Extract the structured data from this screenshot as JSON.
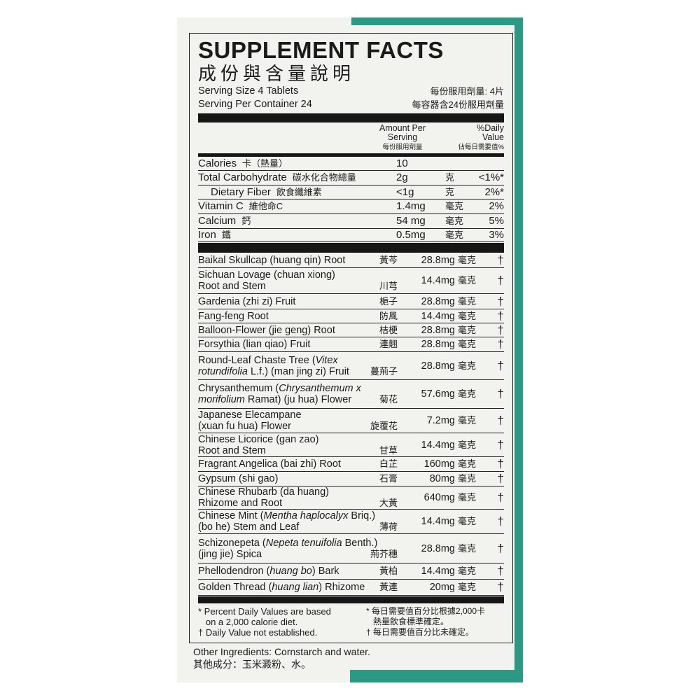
{
  "colors": {
    "accent": "#2a9a85",
    "ink": "#161616",
    "paper": "#f2f2ee"
  },
  "title": "SUPPLEMENT FACTS",
  "title_zh": "成份與含量說明",
  "serving": {
    "size": "Serving Size 4 Tablets",
    "size_zh": "每份服用劑量: 4片",
    "per_container": "Serving Per Container 24",
    "per_container_zh": "每容器含24份服用劑量"
  },
  "header": {
    "amount": "Amount Per Serving",
    "amount_zh": "每份服用劑量",
    "dv": "%Daily Value",
    "dv_zh": "佔每日需要值%"
  },
  "nutrients": [
    {
      "name": "Calories",
      "zh": "卡（熱量）",
      "amount": "10",
      "unit": "",
      "dv": ""
    },
    {
      "name": "Total Carbohydrate",
      "zh": "碳水化合物總量",
      "amount": "2g",
      "unit": "克",
      "dv": "<1%*"
    },
    {
      "name": "Dietary Fiber",
      "zh": "飲食纖維素",
      "amount": "<1g",
      "unit": "克",
      "dv": "2%*",
      "indent": true
    },
    {
      "name": "Vitamin C",
      "zh": "維他命C",
      "amount": "1.4mg",
      "unit": "毫克",
      "dv": "2%"
    },
    {
      "name": "Calcium",
      "zh": "鈣",
      "amount": "54 mg",
      "unit": "毫克",
      "dv": "5%"
    },
    {
      "name": "Iron",
      "zh": "鐵",
      "amount": "0.5mg",
      "unit": "毫克",
      "dv": "3%"
    }
  ],
  "ingredients": [
    {
      "lines": [
        [
          [
            "Baikal Skullcap (huang qin) Root",
            0
          ]
        ]
      ],
      "zh": "黃芩",
      "amount": "28.8mg",
      "unit": "毫克",
      "dv": "†"
    },
    {
      "lines": [
        [
          [
            "Sichuan Lovage (chuan xiong)",
            0
          ]
        ],
        [
          [
            "Root and Stem",
            0
          ]
        ]
      ],
      "zh": "川芎",
      "amount": "14.4mg",
      "unit": "毫克",
      "dv": "†"
    },
    {
      "lines": [
        [
          [
            "Gardenia (zhi zi) Fruit",
            0
          ]
        ]
      ],
      "zh": "梔子",
      "amount": "28.8mg",
      "unit": "毫克",
      "dv": "†"
    },
    {
      "lines": [
        [
          [
            "Fang-feng Root",
            0
          ]
        ]
      ],
      "zh": "防風",
      "amount": "14.4mg",
      "unit": "毫克",
      "dv": "†"
    },
    {
      "lines": [
        [
          [
            "Balloon-Flower (jie geng) Root",
            0
          ]
        ]
      ],
      "zh": "桔梗",
      "amount": "28.8mg",
      "unit": "毫克",
      "dv": "†"
    },
    {
      "lines": [
        [
          [
            "Forsythia (lian qiao) Fruit",
            0
          ]
        ]
      ],
      "zh": "連翹",
      "amount": "28.8mg",
      "unit": "毫克",
      "dv": "†"
    },
    {
      "lines": [
        [
          [
            "Round-Leaf Chaste Tree (",
            0
          ],
          [
            "Vitex",
            1
          ]
        ],
        [
          [
            "rotundifolia",
            1
          ],
          [
            " L.f.) (man jing zi) Fruit",
            0
          ]
        ]
      ],
      "zh": "蔓荊子",
      "amount": "28.8mg",
      "unit": "毫克",
      "dv": "†"
    },
    {
      "lines": [
        [
          [
            "Chrysanthemum (",
            0
          ],
          [
            "Chrysanthemum x",
            1
          ]
        ],
        [
          [
            "morifolium",
            1
          ],
          [
            " Ramat) (ju hua) Flower",
            0
          ]
        ]
      ],
      "zh": "菊花",
      "amount": "57.6mg",
      "unit": "毫克",
      "dv": "†"
    },
    {
      "lines": [
        [
          [
            "Japanese Elecampane",
            0
          ]
        ],
        [
          [
            "(xuan fu hua) Flower",
            0
          ]
        ]
      ],
      "zh": "旋覆花",
      "amount": "7.2mg",
      "unit": "毫克",
      "dv": "†"
    },
    {
      "lines": [
        [
          [
            "Chinese Licorice (gan zao)",
            0
          ]
        ],
        [
          [
            "Root and Stem",
            0
          ]
        ]
      ],
      "zh": "甘草",
      "amount": "14.4mg",
      "unit": "毫克",
      "dv": "†"
    },
    {
      "lines": [
        [
          [
            "Fragrant  Angelica (bai zhi) Root",
            0
          ]
        ]
      ],
      "zh": "白芷",
      "amount": "160mg",
      "unit": "毫克",
      "dv": "†"
    },
    {
      "lines": [
        [
          [
            "Gypsum (shi gao)",
            0
          ]
        ]
      ],
      "zh": "石膏",
      "amount": "80mg",
      "unit": "毫克",
      "dv": "†"
    },
    {
      "lines": [
        [
          [
            "Chinese Rhubarb (da huang)",
            0
          ]
        ],
        [
          [
            "Rhizome and Root",
            0
          ]
        ]
      ],
      "zh": "大黃",
      "amount": "640mg",
      "unit": "毫克",
      "dv": "†"
    },
    {
      "lines": [
        [
          [
            "Chinese Mint (",
            0
          ],
          [
            "Mentha haplocalyx",
            1
          ],
          [
            " Briq.)",
            0
          ]
        ],
        [
          [
            "(bo he) Stem and Leaf",
            0
          ]
        ]
      ],
      "zh": "薄荷",
      "amount": "14.4mg",
      "unit": "毫克",
      "dv": "†"
    },
    {
      "lines": [
        [
          [
            "Schizonepeta (",
            0
          ],
          [
            "Nepeta tenuifolia",
            1
          ],
          [
            " Benth.)",
            0
          ]
        ],
        [
          [
            "(jing jie) Spica",
            0
          ]
        ]
      ],
      "zh": "荊芥穗",
      "amount": "28.8mg",
      "unit": "毫克",
      "dv": "†"
    },
    {
      "lines": [
        [
          [
            "Phellodendron (",
            0
          ],
          [
            "huang bo",
            1
          ],
          [
            ") Bark",
            0
          ]
        ]
      ],
      "zh": "黃柏",
      "amount": "14.4mg",
      "unit": "毫克",
      "dv": "†"
    },
    {
      "lines": [
        [
          [
            "Golden Thread (",
            0
          ],
          [
            "huang lian",
            1
          ],
          [
            ") Rhizome",
            0
          ]
        ]
      ],
      "zh": "黃連",
      "amount": "20mg",
      "unit": "毫克",
      "dv": "†"
    }
  ],
  "footnotes": {
    "l1": "* Percent Daily Values are based",
    "l2": "   on a 2,000 calorie diet.",
    "l3": "† Daily Value not established.",
    "r1": "* 每日需要值百分比根據2,000卡",
    "r2": "   熱量飲食標準確定。",
    "r3": "† 每日需要值百分比未確定。"
  },
  "other": {
    "en": "Other Ingredients: Cornstarch and water.",
    "zh": "其他成分：玉米澱粉、水。"
  }
}
